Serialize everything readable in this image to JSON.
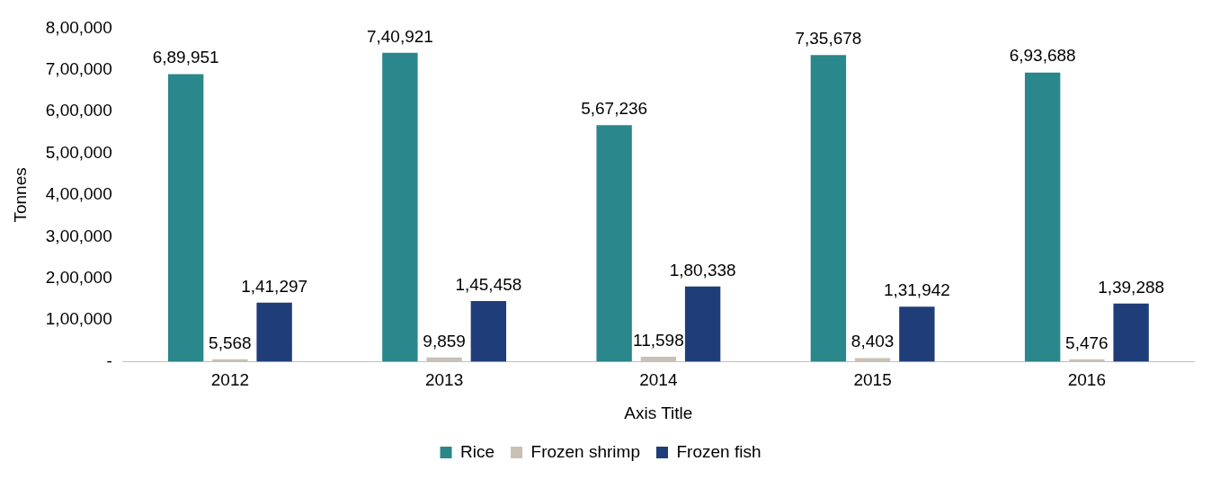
{
  "chart_data": {
    "type": "bar",
    "xlabel": "Axis Title",
    "ylabel": "Tonnes",
    "categories": [
      "2012",
      "2013",
      "2014",
      "2015",
      "2016"
    ],
    "series": [
      {
        "name": "Rice",
        "color": "#2a878b",
        "values": [
          689951,
          740921,
          567236,
          735678,
          693688
        ],
        "value_labels": [
          "6,89,951",
          "7,40,921",
          "5,67,236",
          "7,35,678",
          "6,93,688"
        ]
      },
      {
        "name": "Frozen shrimp",
        "color": "#c8c1b4",
        "values": [
          5568,
          9859,
          11598,
          8403,
          5476
        ],
        "value_labels": [
          "5,568",
          "9,859",
          "11,598",
          "8,403",
          "5,476"
        ]
      },
      {
        "name": "Frozen fish",
        "color": "#1f3e79",
        "values": [
          141297,
          145458,
          180338,
          131942,
          139288
        ],
        "value_labels": [
          "1,41,297",
          "1,45,458",
          "1,80,338",
          "1,31,942",
          "1,39,288"
        ]
      }
    ],
    "ylim": [
      0,
      800000
    ],
    "yticks": [
      {
        "value": 0,
        "label": "-"
      },
      {
        "value": 100000,
        "label": "1,00,000"
      },
      {
        "value": 200000,
        "label": "2,00,000"
      },
      {
        "value": 300000,
        "label": "3,00,000"
      },
      {
        "value": 400000,
        "label": "4,00,000"
      },
      {
        "value": 500000,
        "label": "5,00,000"
      },
      {
        "value": 600000,
        "label": "6,00,000"
      },
      {
        "value": 700000,
        "label": "7,00,000"
      },
      {
        "value": 800000,
        "label": "8,00,000"
      }
    ],
    "grid": false,
    "legend": "bottom"
  }
}
